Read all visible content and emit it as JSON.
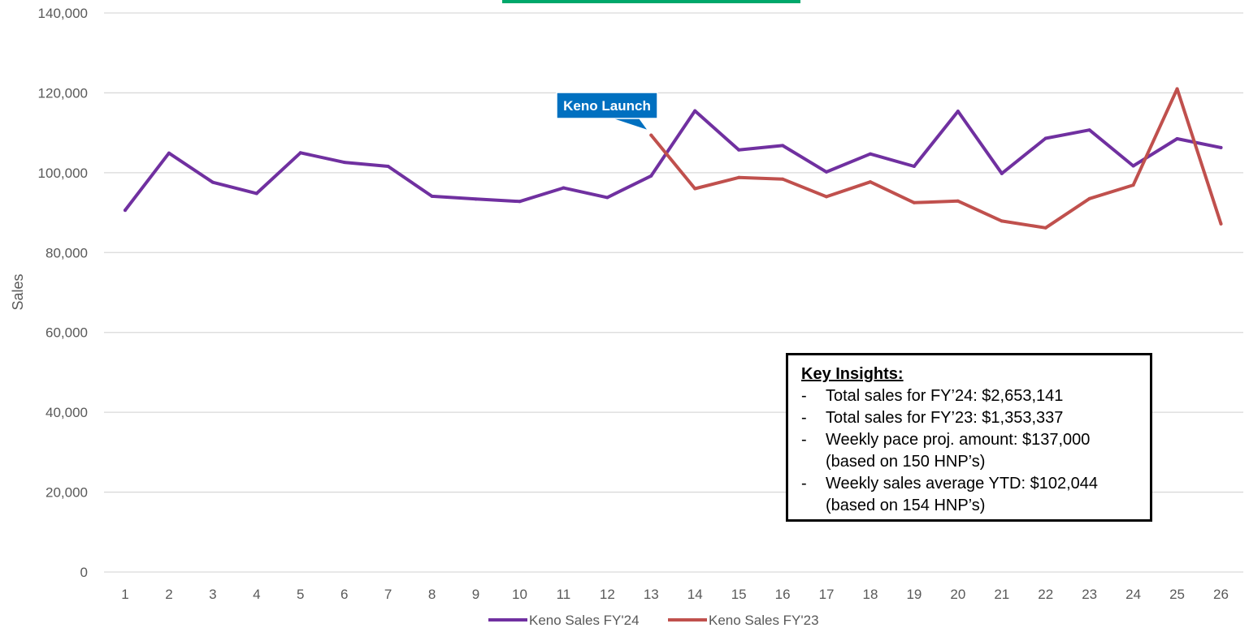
{
  "chart_data": {
    "type": "line",
    "title": "",
    "xlabel": "",
    "ylabel": "Sales",
    "x": [
      1,
      2,
      3,
      4,
      5,
      6,
      7,
      8,
      9,
      10,
      11,
      12,
      13,
      14,
      15,
      16,
      17,
      18,
      19,
      20,
      21,
      22,
      23,
      24,
      25,
      26
    ],
    "x_tick_labels": [
      "1",
      "2",
      "3",
      "4",
      "5",
      "6",
      "7",
      "8",
      "9",
      "10",
      "11",
      "12",
      "13",
      "14",
      "15",
      "16",
      "17",
      "18",
      "19",
      "20",
      "21",
      "22",
      "23",
      "24",
      "25",
      "26"
    ],
    "ylim": [
      0,
      140000
    ],
    "y_ticks": [
      0,
      20000,
      40000,
      60000,
      80000,
      100000,
      120000,
      140000
    ],
    "y_tick_labels": [
      "0",
      "20,000",
      "40,000",
      "60,000",
      "80,000",
      "100,000",
      "120,000",
      "140,000"
    ],
    "grid": "horizontal",
    "legend_position": "bottom",
    "series": [
      {
        "name": "Keno Sales FY'24",
        "color": "#7030A0",
        "x": [
          1,
          2,
          3,
          4,
          5,
          6,
          7,
          8,
          9,
          10,
          11,
          12,
          13,
          14,
          15,
          16,
          17,
          18,
          19,
          20,
          21,
          22,
          23,
          24,
          25,
          26
        ],
        "values": [
          90600,
          104900,
          97600,
          94800,
          105000,
          102600,
          101600,
          94100,
          93400,
          92800,
          96200,
          93800,
          99200,
          115500,
          105700,
          106800,
          100200,
          104700,
          101600,
          115400,
          99800,
          108600,
          110700,
          101700,
          108500,
          106300
        ]
      },
      {
        "name": "Keno Sales FY'23",
        "color": "#C0504D",
        "x": [
          13,
          14,
          15,
          16,
          17,
          18,
          19,
          20,
          21,
          22,
          23,
          24,
          25,
          26
        ],
        "values": [
          109400,
          96000,
          98800,
          98400,
          94000,
          97700,
          92500,
          92900,
          87900,
          86200,
          93500,
          96900,
          121000,
          87200
        ]
      }
    ],
    "annotations": [
      {
        "text": "Keno Launch",
        "x": 13,
        "y": 109400,
        "color": "#0070C0"
      }
    ]
  },
  "insights": {
    "title": "Key Insights:",
    "items": [
      {
        "lines": [
          "Total sales for FY’24: $2,653,141"
        ]
      },
      {
        "lines": [
          "Total sales for FY’23: $1,353,337"
        ]
      },
      {
        "lines": [
          "Weekly pace proj. amount: $137,000",
          "(based on 150 HNP’s)"
        ]
      },
      {
        "lines": [
          "Weekly sales average YTD: $102,044",
          "(based on 154 HNP’s)"
        ]
      }
    ],
    "bullet": "-"
  },
  "colors": {
    "gridline": "#D9D9D9",
    "title_bar_accent": "#00A86B",
    "callout_fill": "#0070C0"
  }
}
